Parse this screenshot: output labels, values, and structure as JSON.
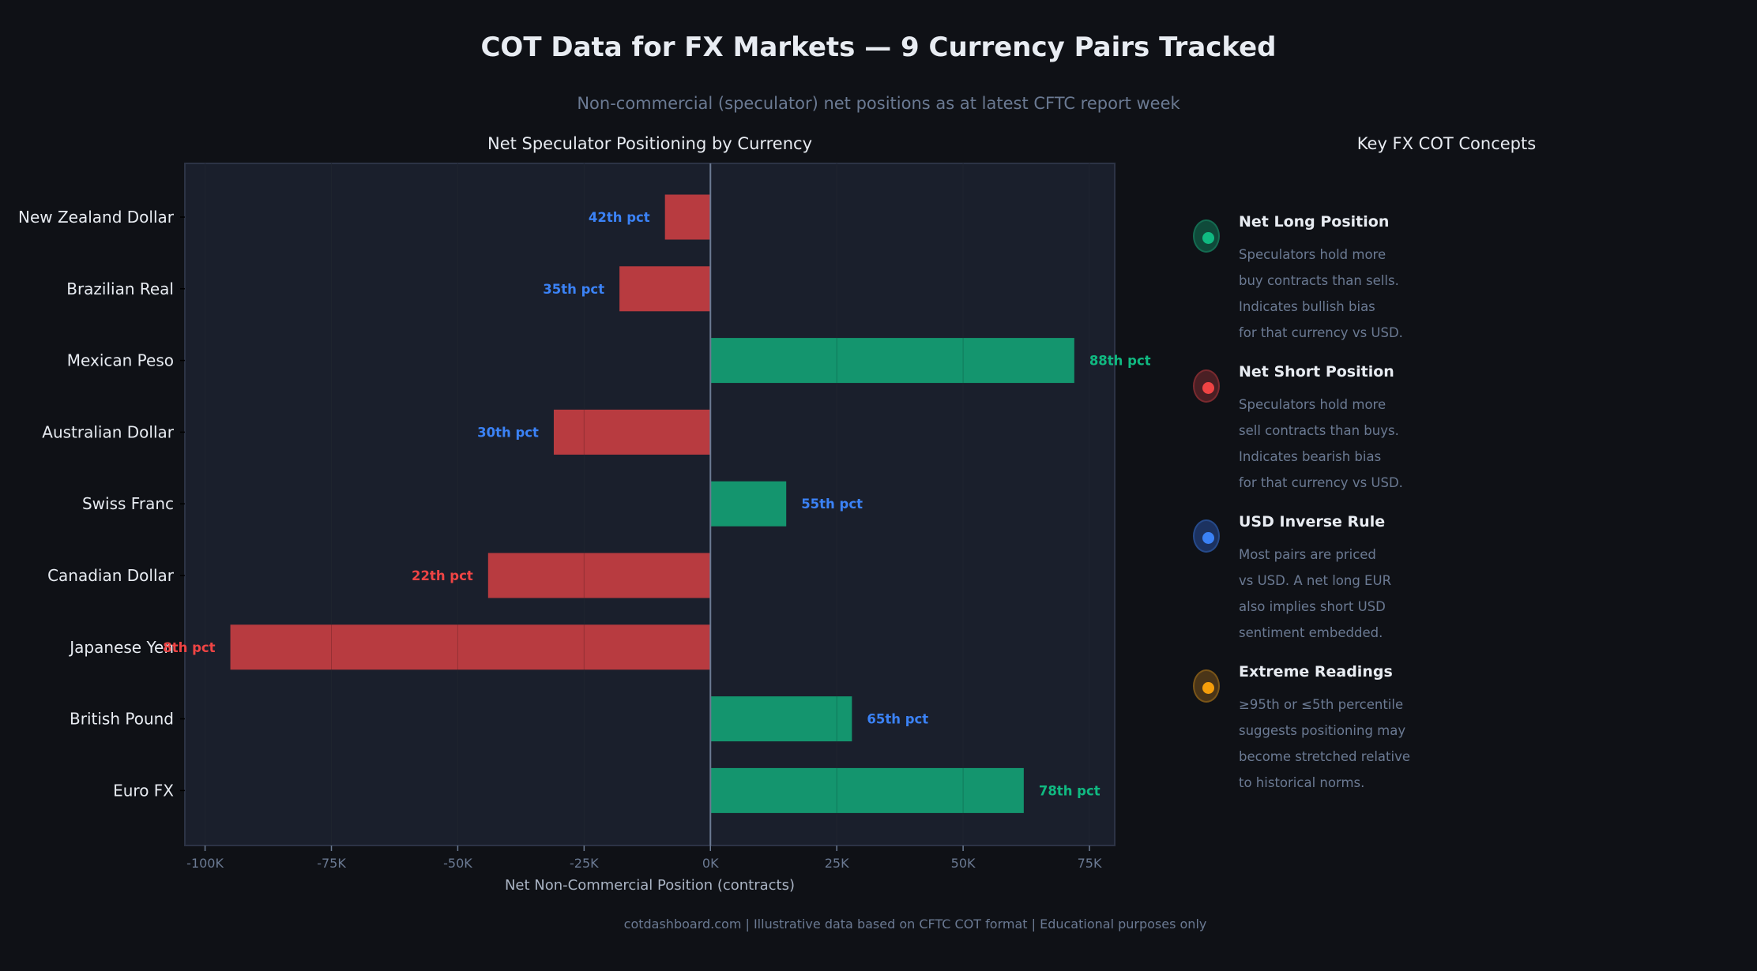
{
  "title": "COT Data for FX Markets — 9 Currency Pairs Tracked",
  "subtitle": "Non-commercial (speculator) net positions as at latest CFTC report week",
  "footer": "cotdashboard.com  |  Illustrative data based on CFTC COT format  |  Educational purposes only",
  "chart_data": {
    "type": "bar",
    "orientation": "horizontal",
    "title": "Net Speculator Positioning by Currency",
    "xlabel": "Net Non-Commercial Position (contracts)",
    "ylabel": "",
    "xlim": [
      -104000,
      80000
    ],
    "grid": true,
    "categories": [
      "New Zealand Dollar",
      "Brazilian Real",
      "Mexican Peso",
      "Australian Dollar",
      "Swiss Franc",
      "Canadian Dollar",
      "Japanese Yen",
      "British Pound",
      "Euro FX"
    ],
    "values": [
      -9000,
      -18000,
      72000,
      -31000,
      15000,
      -44000,
      -95000,
      28000,
      62000
    ],
    "data_labels": [
      "42th pct",
      "35th pct",
      "88th pct",
      "30th pct",
      "55th pct",
      "22th pct",
      "8th pct",
      "65th pct",
      "78th pct"
    ],
    "label_colors": [
      "#3b82f6",
      "#3b82f6",
      "#10b981",
      "#3b82f6",
      "#3b82f6",
      "#ef4444",
      "#ef4444",
      "#3b82f6",
      "#10b981"
    ],
    "x_ticks": [
      -100000,
      -75000,
      -50000,
      -25000,
      0,
      25000,
      50000,
      75000
    ],
    "x_tick_labels": [
      "-100K",
      "-75K",
      "-50K",
      "-25K",
      "0K",
      "25K",
      "50K",
      "75K"
    ],
    "colors": {
      "positive": "#14956e",
      "negative": "#b83b40"
    }
  },
  "panel": {
    "title": "Key FX COT Concepts",
    "items": [
      {
        "icon": "green-dot-icon",
        "color": "#10b981",
        "ring": "#0f4a3a",
        "border": "#146b51",
        "heading": "Net Long Position",
        "lines": [
          "Speculators hold more",
          "buy contracts than sells.",
          "Indicates bullish bias",
          "for that currency vs USD."
        ]
      },
      {
        "icon": "red-dot-icon",
        "color": "#ef4444",
        "ring": "#4a1f24",
        "border": "#7a2a2f",
        "heading": "Net Short Position",
        "lines": [
          "Speculators hold more",
          "sell contracts than buys.",
          "Indicates bearish bias",
          "for that currency vs USD."
        ]
      },
      {
        "icon": "blue-dot-icon",
        "color": "#3b82f6",
        "ring": "#1c3260",
        "border": "#264a8a",
        "heading": "USD Inverse Rule",
        "lines": [
          "Most pairs are priced",
          "vs USD. A net long EUR",
          "also implies short USD",
          "sentiment embedded."
        ]
      },
      {
        "icon": "orange-dot-icon",
        "color": "#f59e0b",
        "ring": "#4a3518",
        "border": "#7a5518",
        "heading": "Extreme Readings",
        "lines": [
          "≥95th or ≤5th percentile",
          "suggests positioning may",
          "become stretched relative",
          "to historical norms."
        ]
      }
    ]
  }
}
